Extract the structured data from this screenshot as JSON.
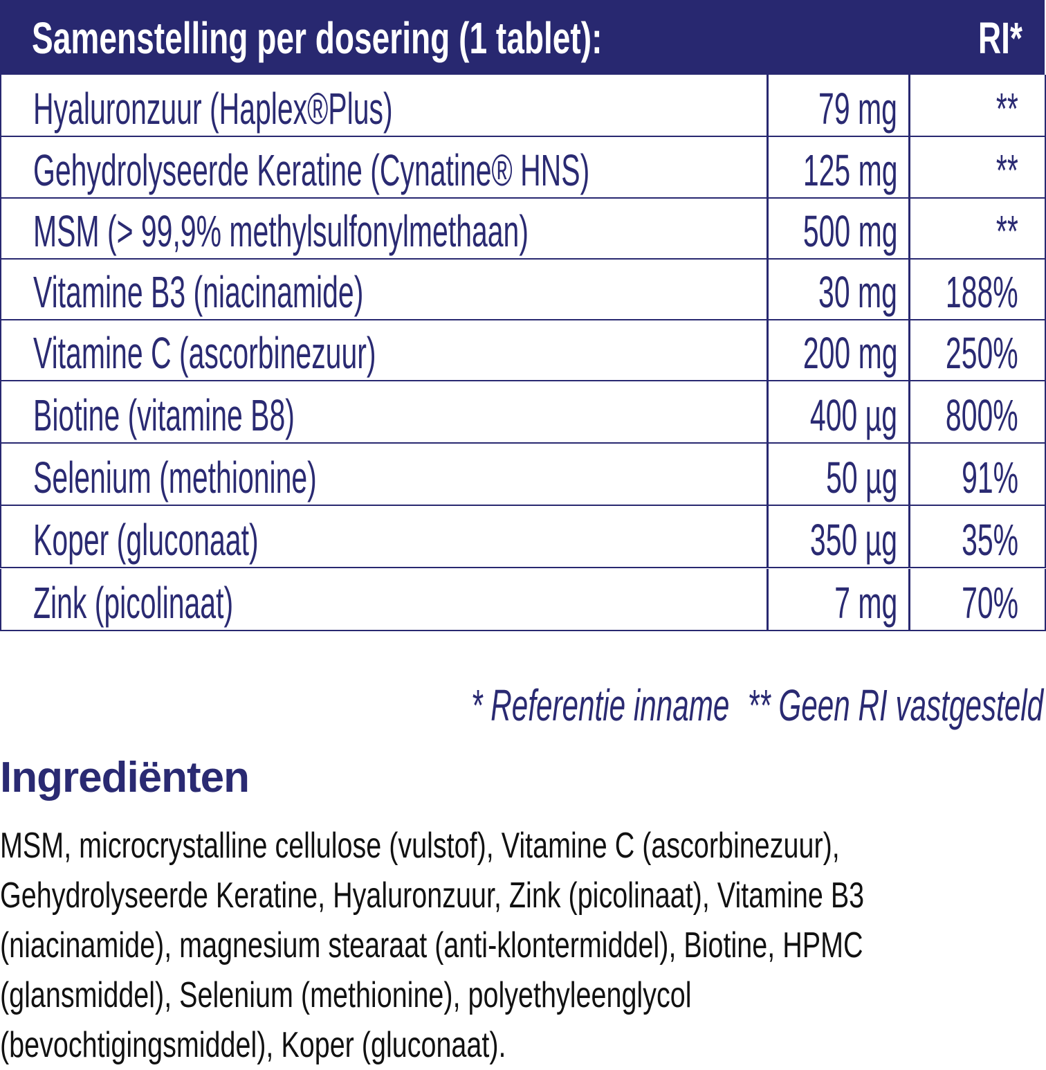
{
  "table": {
    "header": {
      "title": "Samenstelling per dosering (1 tablet):",
      "ri": "RI*"
    },
    "rows": [
      {
        "name": "Hyaluronzuur (Haplex®Plus)",
        "amount": "79 mg",
        "ri": "**"
      },
      {
        "name": "Gehydrolyseerde Keratine (Cynatine® HNS)",
        "amount": "125 mg",
        "ri": "**"
      },
      {
        "name": "MSM (> 99,9% methylsulfonylmethaan)",
        "amount": "500 mg",
        "ri": "**"
      },
      {
        "name": "Vitamine B3 (niacinamide)",
        "amount": "30 mg",
        "ri": "188%"
      },
      {
        "name": "Vitamine C (ascorbinezuur)",
        "amount": "200 mg",
        "ri": "250%"
      },
      {
        "name": "Biotine (vitamine B8)",
        "amount": "400 µg",
        "ri": "800%"
      },
      {
        "name": "Selenium (methionine)",
        "amount": "50 µg",
        "ri": "91%"
      },
      {
        "name": "Koper (gluconaat)",
        "amount": "350 µg",
        "ri": "35%"
      },
      {
        "name": "Zink (picolinaat)",
        "amount": "7 mg",
        "ri": "70%"
      }
    ]
  },
  "footnotes": {
    "ri": "* Referentie inname",
    "none": "** Geen RI vastgesteld"
  },
  "ingredients": {
    "title": "Ingrediënten",
    "text": "MSM, microcrystalline cellulose (vulstof), Vitamine C (ascorbinezuur), Gehydrolyseerde Keratine, Hyaluronzuur, Zink (picolinaat), Vitamine B3 (niacinamide), magnesium stearaat (anti-klontermiddel), Biotine, HPMC (glansmiddel), Selenium (methionine), polyethyleenglycol (bevochtigingsmiddel), Koper (gluconaat)."
  },
  "colors": {
    "brand": "#282870",
    "text": "#111111"
  }
}
